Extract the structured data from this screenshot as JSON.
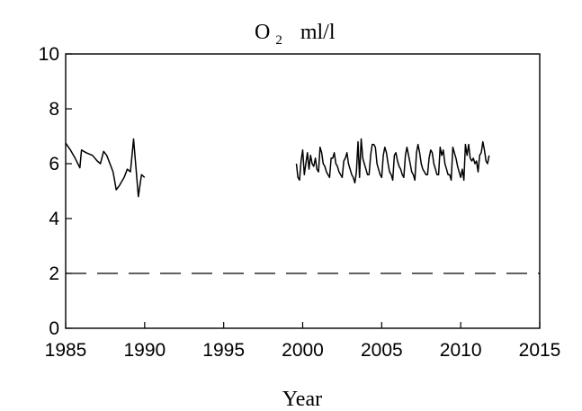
{
  "chart_data": {
    "type": "line",
    "title": {
      "main": "O",
      "subscript": "2",
      "unit": "ml/l"
    },
    "xlabel": "Year",
    "ylabel": "",
    "xlim": [
      1985,
      2015
    ],
    "ylim": [
      0,
      10
    ],
    "x_ticks": [
      1985,
      1990,
      1995,
      2000,
      2005,
      2010,
      2015
    ],
    "y_ticks": [
      0,
      2,
      4,
      6,
      8,
      10
    ],
    "x_tick_labels": [
      "1985",
      "1990",
      "1995",
      "2000",
      "2005",
      "2010",
      "2015"
    ],
    "y_tick_labels": [
      "0",
      "2",
      "4",
      "6",
      "8",
      "10"
    ],
    "grid": false,
    "reference_line": {
      "y": 2,
      "style": "dashed"
    },
    "series": [
      {
        "segments": [
          {
            "x": [
              1985.0,
              1985.3,
              1985.6,
              1985.9,
              1986.0,
              1986.3,
              1986.7,
              1987.0,
              1987.2,
              1987.4,
              1987.6,
              1988.0,
              1988.2,
              1988.4,
              1988.7,
              1988.9,
              1989.1,
              1989.3,
              1989.6,
              1989.8,
              1990.0
            ],
            "y": [
              6.75,
              6.5,
              6.2,
              5.85,
              6.5,
              6.4,
              6.3,
              6.1,
              6.0,
              6.45,
              6.3,
              5.7,
              5.05,
              5.2,
              5.5,
              5.8,
              5.7,
              6.9,
              4.8,
              5.6,
              5.5
            ]
          },
          {
            "x": [
              1999.6,
              1999.7,
              1999.8,
              1999.9,
              2000.0,
              2000.1,
              2000.2,
              2000.3,
              2000.4,
              2000.5,
              2000.6,
              2000.7,
              2000.8,
              2000.9,
              2001.0,
              2001.1,
              2001.2,
              2001.3,
              2001.4,
              2001.5,
              2001.6,
              2001.7,
              2001.8,
              2001.9,
              2002.0,
              2002.1,
              2002.2,
              2002.3,
              2002.4,
              2002.5,
              2002.6,
              2002.7,
              2002.8,
              2002.9,
              2003.0,
              2003.1,
              2003.2,
              2003.3,
              2003.4,
              2003.5,
              2003.6,
              2003.7,
              2003.8,
              2003.9,
              2004.0,
              2004.1,
              2004.2,
              2004.3,
              2004.4,
              2004.5,
              2004.6,
              2004.7,
              2004.8,
              2004.9,
              2005.0,
              2005.1,
              2005.2,
              2005.3,
              2005.4,
              2005.5,
              2005.6,
              2005.7,
              2005.8,
              2005.9,
              2006.0,
              2006.1,
              2006.2,
              2006.3,
              2006.4,
              2006.5,
              2006.6,
              2006.7,
              2006.8,
              2006.9,
              2007.0,
              2007.1,
              2007.2,
              2007.3,
              2007.4,
              2007.5,
              2007.6,
              2007.7,
              2007.8,
              2007.9,
              2008.0,
              2008.1,
              2008.2,
              2008.3,
              2008.4,
              2008.5,
              2008.6,
              2008.7,
              2008.8,
              2008.9,
              2009.0,
              2009.1,
              2009.2,
              2009.3,
              2009.4,
              2009.5,
              2009.6,
              2009.7,
              2009.8,
              2009.9,
              2010.0,
              2010.1,
              2010.2,
              2010.3,
              2010.4,
              2010.5,
              2010.6,
              2010.7,
              2010.8,
              2010.9,
              2011.0,
              2011.1,
              2011.2,
              2011.3,
              2011.4,
              2011.5,
              2011.6,
              2011.7,
              2011.8
            ],
            "y": [
              6.0,
              5.5,
              5.4,
              6.1,
              6.5,
              5.6,
              6.0,
              6.4,
              5.8,
              6.3,
              6.0,
              5.9,
              6.2,
              5.8,
              5.7,
              6.6,
              6.4,
              6.0,
              5.9,
              5.7,
              5.6,
              5.5,
              6.2,
              6.2,
              6.4,
              6.0,
              5.9,
              5.7,
              5.6,
              5.5,
              6.1,
              6.2,
              6.4,
              6.0,
              5.8,
              5.6,
              5.5,
              5.3,
              5.7,
              6.8,
              5.5,
              6.9,
              6.2,
              6.0,
              5.8,
              5.6,
              5.6,
              6.3,
              6.7,
              6.7,
              6.6,
              6.0,
              5.8,
              5.6,
              5.5,
              6.3,
              6.6,
              6.4,
              6.0,
              5.7,
              5.6,
              5.4,
              6.3,
              6.4,
              6.1,
              5.9,
              5.8,
              5.6,
              5.5,
              6.3,
              6.6,
              6.3,
              6.0,
              5.7,
              5.6,
              5.4,
              6.4,
              6.7,
              6.4,
              6.0,
              5.8,
              5.7,
              5.6,
              5.6,
              6.2,
              6.5,
              6.4,
              6.0,
              5.8,
              5.6,
              5.6,
              6.6,
              6.3,
              6.5,
              6.0,
              5.8,
              5.6,
              5.6,
              5.4,
              6.6,
              6.4,
              6.2,
              5.9,
              5.7,
              5.5,
              5.8,
              5.4,
              6.7,
              6.3,
              6.7,
              6.2,
              6.1,
              6.2,
              6.0,
              6.1,
              5.7,
              6.3,
              6.4,
              6.8,
              6.5,
              6.1,
              6.0,
              6.3
            ]
          }
        ]
      }
    ]
  }
}
